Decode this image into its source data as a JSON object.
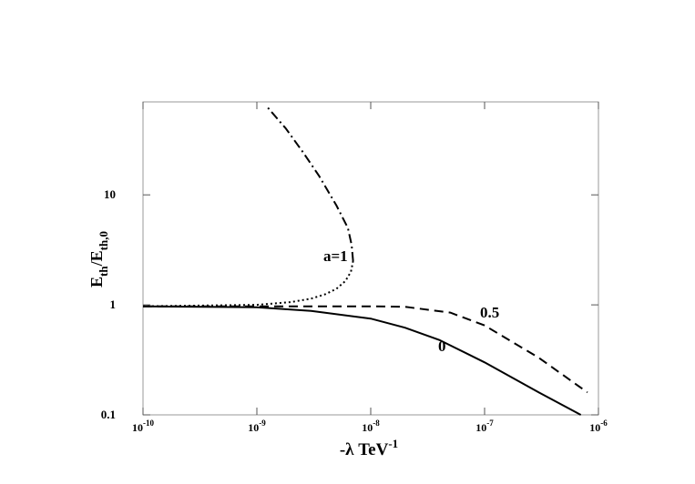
{
  "chart_data": {
    "type": "line",
    "x_label": "-λ TeV",
    "x_label_sup": "-1",
    "y_label": [
      "E",
      "th",
      "/E",
      "th,0"
    ],
    "xscale": "log",
    "yscale": "log",
    "xlim": [
      1e-10,
      1e-06
    ],
    "ylim": [
      0.1,
      70
    ],
    "xticks": [
      {
        "value": 1e-10,
        "label": "10",
        "sup": "-10"
      },
      {
        "value": 1e-09,
        "label": "10",
        "sup": "-9"
      },
      {
        "value": 1e-08,
        "label": "10",
        "sup": "-8"
      },
      {
        "value": 1e-07,
        "label": "10",
        "sup": "-7"
      },
      {
        "value": 1e-06,
        "label": "10",
        "sup": "-6"
      }
    ],
    "yticks": [
      0.1,
      1,
      10
    ],
    "series": [
      {
        "name": "0",
        "color": "#000",
        "dash": "solid",
        "x": [
          1e-10,
          1e-09,
          3e-09,
          1e-08,
          2e-08,
          4e-08,
          1e-07,
          3e-07,
          7e-07
        ],
        "values": [
          0.97,
          0.95,
          0.88,
          0.75,
          0.62,
          0.48,
          0.3,
          0.16,
          0.1
        ]
      },
      {
        "name": "0.5",
        "color": "#000",
        "dash": "dashed",
        "x": [
          1e-10,
          1e-09,
          1e-08,
          2e-08,
          5e-08,
          1e-07,
          3e-07,
          8e-07
        ],
        "values": [
          0.97,
          0.97,
          0.97,
          0.96,
          0.85,
          0.65,
          0.33,
          0.16
        ]
      },
      {
        "name": "a=1",
        "color": "#000",
        "dash": "dotted",
        "x": [
          1e-10,
          1e-09,
          2e-09,
          3e-09,
          4e-09,
          5e-09,
          6e-09,
          6.7e-09,
          7e-09
        ],
        "values": [
          0.97,
          1.0,
          1.06,
          1.14,
          1.25,
          1.4,
          1.65,
          2.0,
          2.5
        ]
      },
      {
        "color": "#000",
        "dash": "dashdot",
        "x": [
          7e-09,
          6.8e-09,
          6.3e-09,
          5e-09,
          3.5e-09,
          2.5e-09,
          1.8e-09,
          1.2e-09
        ],
        "values": [
          2.5,
          3.5,
          5,
          8,
          15,
          25,
          40,
          65
        ]
      }
    ]
  }
}
